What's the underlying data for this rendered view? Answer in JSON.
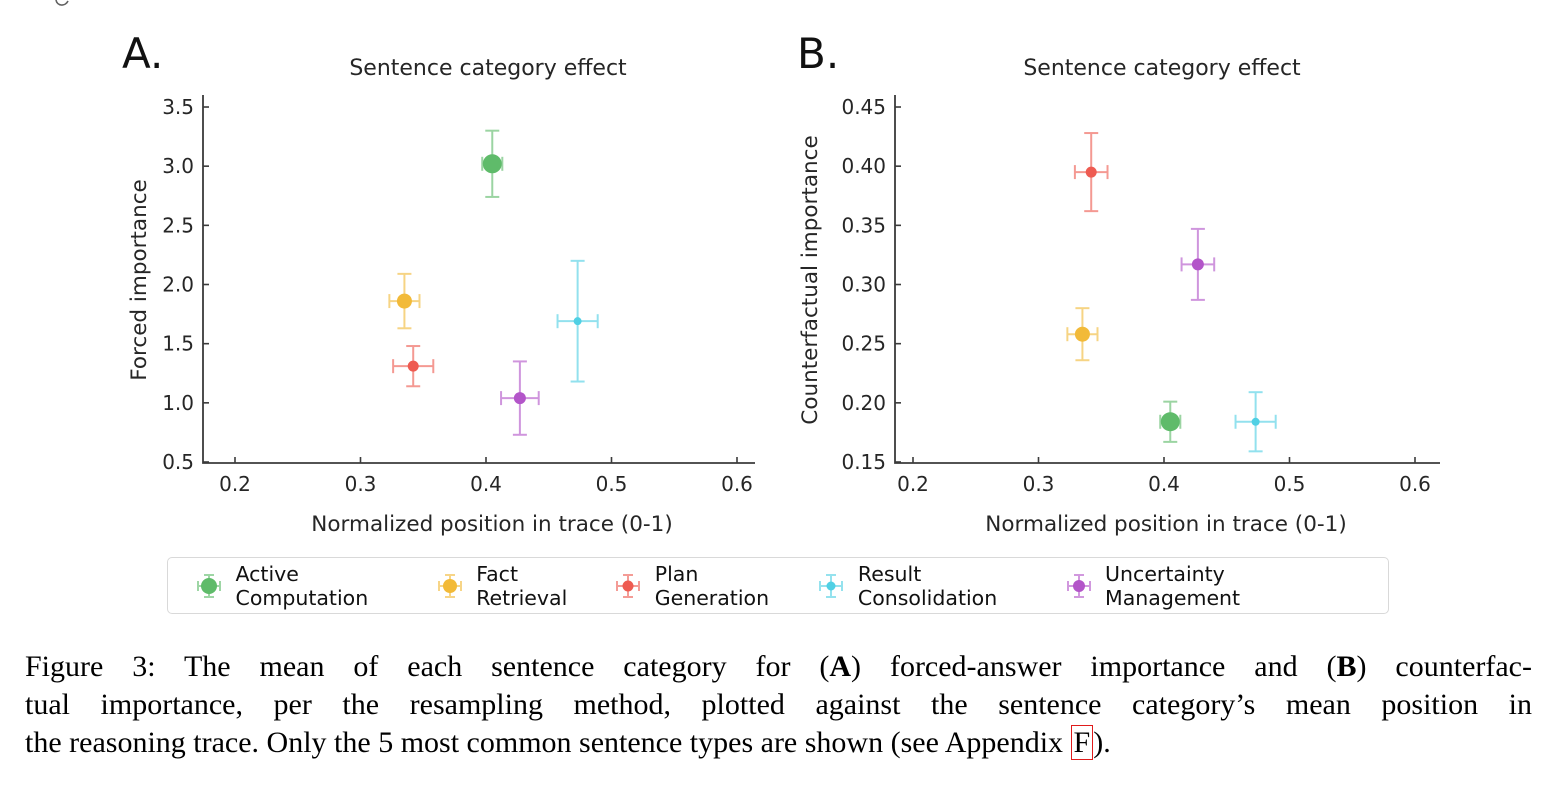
{
  "panels": [
    {
      "label": "A."
    },
    {
      "label": "B."
    }
  ],
  "chart_data": [
    {
      "type": "scatter",
      "panel": "A",
      "title": "Sentence category effect",
      "xlabel": "Normalized position in trace (0-1)",
      "ylabel": "Forced importance",
      "xlim": [
        0.175,
        0.615
      ],
      "ylim": [
        0.45,
        3.6
      ],
      "grid": false,
      "xticks": [
        0.2,
        0.3,
        0.4,
        0.5,
        0.6
      ],
      "xtick_labels": [
        "0.2",
        "0.3",
        "0.4",
        "0.5",
        "0.6"
      ],
      "yticks": [
        0.5,
        1.0,
        1.5,
        2.0,
        2.5,
        3.0,
        3.5
      ],
      "ytick_labels": [
        "0.5",
        "1.0",
        "1.5",
        "2.0",
        "2.5",
        "3.0",
        "3.5"
      ],
      "series": [
        {
          "name": "Active Computation",
          "color": "#5FBB6A",
          "marker_size": 9.5,
          "x": 0.405,
          "y": 3.02,
          "xerr": 0.008,
          "yerr": 0.28
        },
        {
          "name": "Fact Retrieval",
          "color": "#F2BA39",
          "marker_size": 7.5,
          "x": 0.335,
          "y": 1.86,
          "xerr": 0.012,
          "yerr": 0.23
        },
        {
          "name": "Plan Generation",
          "color": "#EE5B51",
          "marker_size": 5.5,
          "x": 0.342,
          "y": 1.31,
          "xerr": 0.016,
          "yerr": 0.17
        },
        {
          "name": "Result Consolidation",
          "color": "#50D0E4",
          "marker_size": 4.0,
          "x": 0.473,
          "y": 1.69,
          "xerr": 0.016,
          "yerr": 0.51
        },
        {
          "name": "Uncertainty Management",
          "color": "#B355C9",
          "marker_size": 6.0,
          "x": 0.427,
          "y": 1.04,
          "xerr": 0.015,
          "yerr": 0.31
        }
      ]
    },
    {
      "type": "scatter",
      "panel": "B",
      "title": "Sentence category effect",
      "xlabel": "Normalized position in trace (0-1)",
      "ylabel": "Counterfactual importance",
      "xlim": [
        0.175,
        0.615
      ],
      "ylim": [
        0.13,
        0.46
      ],
      "grid": false,
      "xticks": [
        0.2,
        0.3,
        0.4,
        0.5,
        0.6
      ],
      "xtick_labels": [
        "0.2",
        "0.3",
        "0.4",
        "0.5",
        "0.6"
      ],
      "yticks": [
        0.15,
        0.2,
        0.25,
        0.3,
        0.35,
        0.4,
        0.45
      ],
      "ytick_labels": [
        "0.15",
        "0.20",
        "0.25",
        "0.30",
        "0.35",
        "0.40",
        "0.45"
      ],
      "series": [
        {
          "name": "Active Computation",
          "color": "#5FBB6A",
          "marker_size": 9.5,
          "x": 0.405,
          "y": 0.184,
          "xerr": 0.008,
          "yerr": 0.017
        },
        {
          "name": "Fact Retrieval",
          "color": "#F2BA39",
          "marker_size": 7.5,
          "x": 0.335,
          "y": 0.258,
          "xerr": 0.012,
          "yerr": 0.022
        },
        {
          "name": "Plan Generation",
          "color": "#EE5B51",
          "marker_size": 5.5,
          "x": 0.342,
          "y": 0.395,
          "xerr": 0.013,
          "yerr": 0.033
        },
        {
          "name": "Result Consolidation",
          "color": "#50D0E4",
          "marker_size": 4.0,
          "x": 0.473,
          "y": 0.184,
          "xerr": 0.016,
          "yerr": 0.025
        },
        {
          "name": "Uncertainty Management",
          "color": "#B355C9",
          "marker_size": 6.0,
          "x": 0.427,
          "y": 0.317,
          "xerr": 0.013,
          "yerr": 0.03
        }
      ]
    }
  ],
  "legend": {
    "items": [
      {
        "label": "Active Computation",
        "color": "#5FBB6A",
        "marker_size": 8.0
      },
      {
        "label": "Fact Retrieval",
        "color": "#F2BA39",
        "marker_size": 7.0
      },
      {
        "label": "Plan Generation",
        "color": "#EE5B51",
        "marker_size": 5.5
      },
      {
        "label": "Result Consolidation",
        "color": "#50D0E4",
        "marker_size": 4.5
      },
      {
        "label": "Uncertainty Management",
        "color": "#B355C9",
        "marker_size": 6.0
      }
    ]
  },
  "caption": {
    "lines": [
      [
        {
          "t": "Figure 3: The mean of each sentence category for ("
        },
        {
          "t": "A",
          "b": true
        },
        {
          "t": ") forced-answer importance and ("
        },
        {
          "t": "B",
          "b": true
        },
        {
          "t": ") counterfac-"
        }
      ],
      [
        {
          "t": "tual importance, per the resampling method, plotted against the sentence category’s mean position in"
        }
      ],
      [
        {
          "t": "the reasoning trace. Only the 5 most common sentence types are shown (see Appendix "
        },
        {
          "t": "F",
          "box": true
        },
        {
          "t": ")."
        }
      ]
    ]
  },
  "colors": {
    "axis": "#3b3b3b",
    "tick_text": "#262626",
    "legend_border": "#d9d9d9",
    "link_box": "#e01b1b"
  }
}
